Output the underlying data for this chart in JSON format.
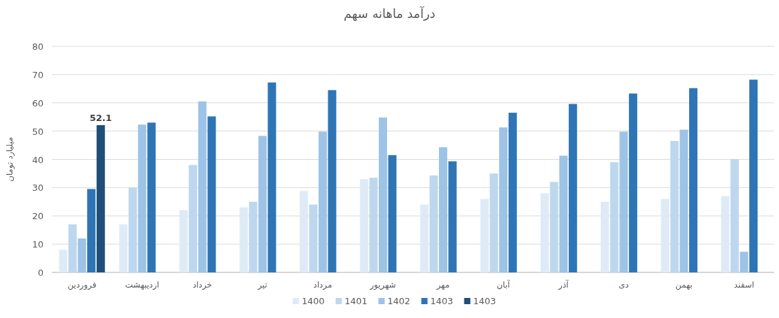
{
  "chart_data": {
    "type": "bar",
    "title": "درآمد ماهانه سهم",
    "ylabel": "میلیارد تومان",
    "categories": [
      "فروردين",
      "اردیبهشت",
      "خرداد",
      "تیر",
      "مرداد",
      "شهریور",
      "مهر",
      "آبان",
      "آذر",
      "دی",
      "بهمن",
      "اسفند"
    ],
    "series": [
      {
        "name": "1400",
        "color": "#deebf7",
        "values": [
          8,
          17,
          22,
          23,
          28.8,
          33,
          24,
          26,
          28,
          25,
          26,
          27
        ]
      },
      {
        "name": "1401",
        "color": "#bdd7ee",
        "values": [
          17,
          30,
          38,
          25,
          24,
          33.5,
          34.3,
          35,
          32,
          39,
          46.5,
          40
        ]
      },
      {
        "name": "1402",
        "color": "#9dc3e6",
        "values": [
          12,
          52.3,
          60.5,
          48.3,
          49.8,
          54.8,
          44.3,
          51.3,
          41.3,
          49.8,
          50.5,
          7.3
        ]
      },
      {
        "name": "1403",
        "color": "#2e75b6",
        "values": [
          29.5,
          53,
          55.2,
          67.2,
          64.5,
          41.5,
          39.3,
          56.5,
          59.6,
          63.3,
          65.2,
          68.2
        ]
      },
      {
        "name": "1403",
        "color": "#1f4e79",
        "values": [
          52.1,
          null,
          null,
          null,
          null,
          null,
          null,
          null,
          null,
          null,
          null,
          null
        ],
        "value_labels": [
          "52.1",
          null,
          null,
          null,
          null,
          null,
          null,
          null,
          null,
          null,
          null,
          null
        ]
      }
    ],
    "ylim": [
      0,
      80
    ],
    "yticks": [
      0,
      10,
      20,
      30,
      40,
      50,
      60,
      70,
      80
    ],
    "grid": "y",
    "legend": "bottom"
  }
}
